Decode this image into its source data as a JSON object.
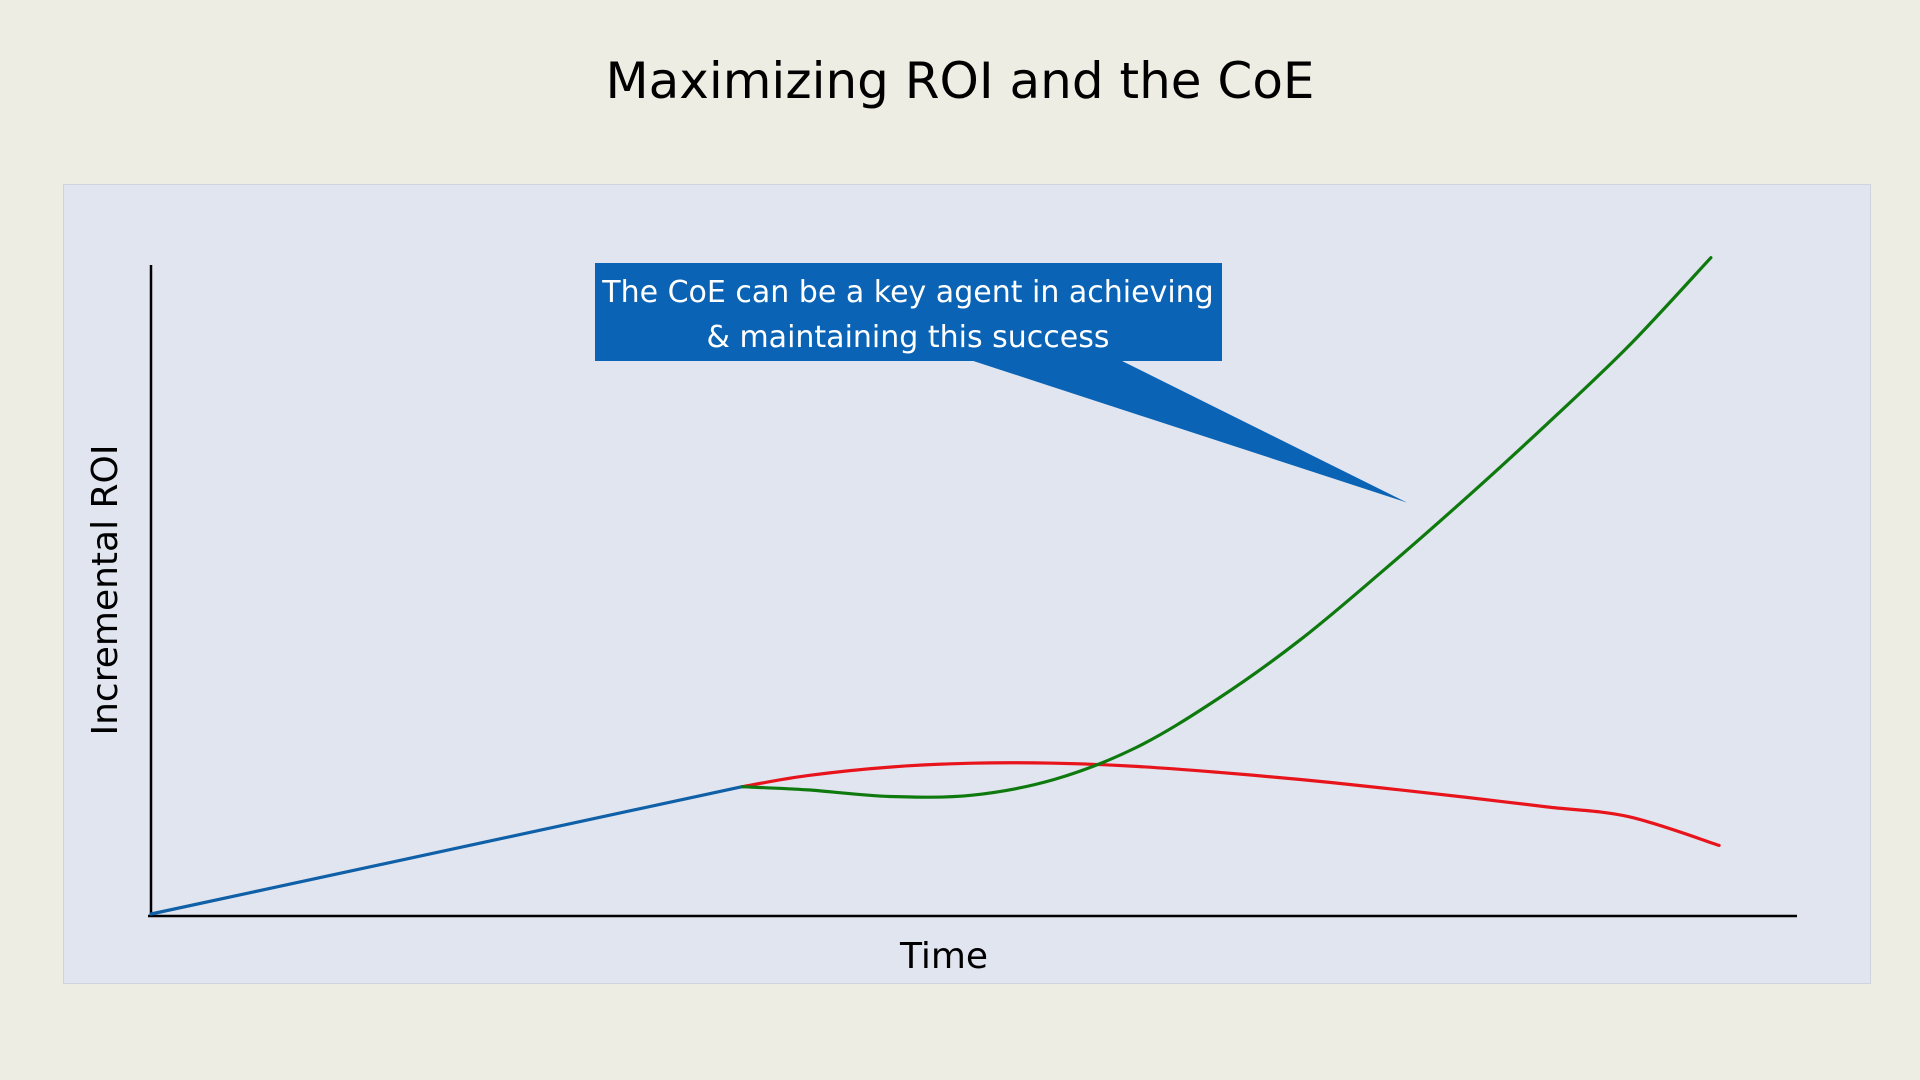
{
  "slide": {
    "title": "Maximizing ROI and the CoE"
  },
  "chart_data": {
    "type": "line",
    "title": "Maximizing ROI and the CoE",
    "xlabel": "Time",
    "ylabel": "Incremental ROI",
    "xlim": [
      0,
      100
    ],
    "ylim": [
      0,
      100
    ],
    "grid": false,
    "legend": "none",
    "colors": {
      "baseline": "#1060a8",
      "with_coe": "#0e7a0e",
      "without_coe": "#e8141c",
      "callout": "#0a63b5",
      "axis": "#000000"
    },
    "series": [
      {
        "key": "baseline",
        "x": [
          0,
          36
        ],
        "y": [
          0,
          19.5
        ]
      },
      {
        "key": "with_coe",
        "x": [
          36,
          40,
          45,
          50,
          55,
          60,
          65,
          70,
          75,
          80,
          85,
          90,
          95
        ],
        "y": [
          19.5,
          19.0,
          18.0,
          18.2,
          20.6,
          25.5,
          33.0,
          42.0,
          52.5,
          63.5,
          75.0,
          87.0,
          100.5
        ]
      },
      {
        "key": "without_coe",
        "x": [
          36,
          40,
          45,
          50,
          55,
          60,
          65,
          70,
          75,
          80,
          85,
          90,
          95.5
        ],
        "y": [
          19.5,
          21.2,
          22.5,
          23.1,
          23.1,
          22.6,
          21.7,
          20.6,
          19.3,
          17.9,
          16.4,
          14.9,
          10.5
        ]
      }
    ],
    "annotations": [
      {
        "line1": "The CoE can be a key agent in achieving",
        "line2": "& maintaining this success",
        "point_x": 76.5,
        "point_y": 63.0
      }
    ]
  }
}
